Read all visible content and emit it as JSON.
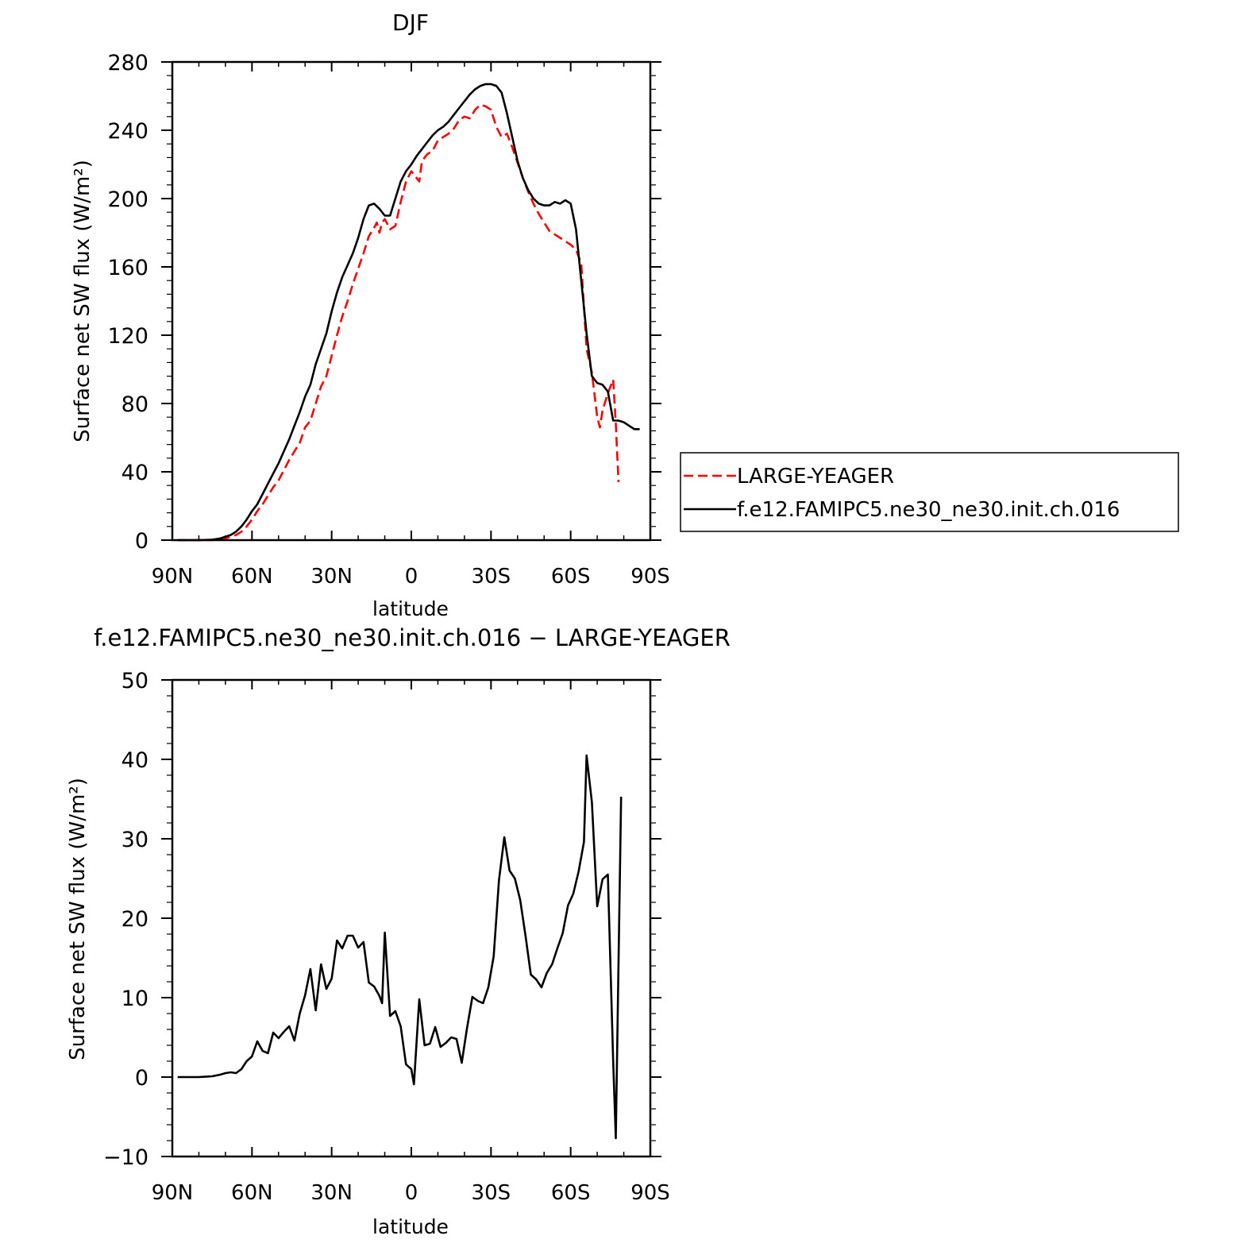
{
  "chart_data": [
    {
      "type": "line",
      "title": "DJF",
      "xlabel": "latitude",
      "ylabel": "Surface net SW flux (W/m²)",
      "xlim": [
        90,
        -90
      ],
      "ylim": [
        0,
        280
      ],
      "x_ticks": [
        90,
        60,
        30,
        0,
        -30,
        -60,
        -90
      ],
      "x_tick_labels": [
        "90N",
        "60N",
        "30N",
        "0",
        "30S",
        "60S",
        "90S"
      ],
      "y_ticks": [
        0,
        40,
        80,
        120,
        160,
        200,
        240,
        280
      ],
      "y_tick_labels": [
        "0",
        "40",
        "80",
        "120",
        "160",
        "200",
        "240",
        "280"
      ],
      "legend_position": "right",
      "series": [
        {
          "name": "LARGE-YEAGER",
          "color": "#ff0000",
          "dash": "dashed",
          "x": [
            88,
            85,
            80,
            75,
            72,
            70,
            68,
            66,
            64,
            62,
            60,
            58,
            56,
            54,
            52,
            50,
            48,
            46,
            44,
            42,
            40,
            38,
            36,
            34,
            32,
            30,
            28,
            26,
            24,
            22,
            20,
            18,
            16,
            14,
            13,
            12,
            11,
            10,
            8,
            6,
            4,
            2,
            0,
            -2,
            -3,
            -4,
            -6,
            -8,
            -10,
            -12,
            -14,
            -16,
            -18,
            -20,
            -22,
            -24,
            -26,
            -28,
            -30,
            -32,
            -34,
            -36,
            -38,
            -40,
            -42,
            -44,
            -46,
            -48,
            -50,
            -52,
            -54,
            -56,
            -58,
            -60,
            -62,
            -64,
            -66,
            -68,
            -70,
            -71,
            -72,
            -74,
            -76,
            -77,
            -78
          ],
          "y": [
            0,
            0,
            0,
            0,
            0.5,
            1,
            2,
            3,
            5,
            8,
            12,
            17,
            21,
            26,
            31,
            35,
            41,
            47,
            52,
            57,
            66,
            70,
            80,
            90,
            96,
            108,
            120,
            131,
            140,
            150,
            159,
            168,
            178,
            183,
            186,
            180,
            186,
            188,
            182,
            184,
            198,
            210,
            216,
            212,
            210,
            222,
            226,
            228,
            234,
            236,
            238,
            241,
            246,
            248,
            247,
            252,
            255,
            254,
            252,
            242,
            236,
            238,
            230,
            221,
            212,
            204,
            197,
            191,
            186,
            181,
            179,
            177,
            175,
            173,
            170,
            162,
            112,
            98,
            72,
            66,
            76,
            86,
            94,
            68,
            34
          ]
        },
        {
          "name": "f.e12.FAMIPC5.ne30_ne30.init.ch.016",
          "color": "#000000",
          "dash": "solid",
          "x": [
            88,
            85,
            80,
            75,
            72,
            70,
            68,
            66,
            64,
            62,
            60,
            58,
            56,
            54,
            52,
            50,
            48,
            46,
            44,
            42,
            40,
            38,
            36,
            34,
            32,
            30,
            28,
            26,
            24,
            22,
            20,
            18,
            16,
            14,
            12,
            10,
            8,
            6,
            4,
            2,
            0,
            -2,
            -4,
            -6,
            -8,
            -10,
            -12,
            -14,
            -16,
            -18,
            -20,
            -22,
            -24,
            -26,
            -28,
            -30,
            -32,
            -34,
            -36,
            -38,
            -40,
            -42,
            -44,
            -46,
            -48,
            -50,
            -52,
            -54,
            -56,
            -58,
            -60,
            -62,
            -64,
            -66,
            -68,
            -70,
            -72,
            -74,
            -76,
            -78,
            -80,
            -82,
            -84,
            -86
          ],
          "y": [
            0,
            0,
            0,
            0.3,
            1,
            2,
            3,
            5,
            8,
            12,
            17,
            21,
            27,
            33,
            39,
            45,
            52,
            59,
            67,
            75,
            84,
            91,
            103,
            112,
            121,
            134,
            145,
            154,
            161,
            168,
            177,
            188,
            196,
            197,
            194,
            190,
            190,
            200,
            210,
            216,
            220,
            225,
            229,
            233,
            237,
            240,
            242,
            245,
            249,
            253,
            257,
            261,
            264,
            266,
            267,
            267,
            266,
            262,
            250,
            236,
            222,
            212,
            205,
            200,
            197,
            196,
            196,
            198,
            197,
            199,
            197,
            182,
            152,
            121,
            96,
            92,
            91,
            87,
            70,
            70,
            69,
            67,
            65,
            65
          ]
        }
      ]
    },
    {
      "type": "line",
      "title": "f.e12.FAMIPC5.ne30_ne30.init.ch.016 - LARGE-YEAGER",
      "xlabel": "latitude",
      "ylabel": "Surface net SW flux (W/m²)",
      "xlim": [
        90,
        -90
      ],
      "ylim": [
        -10,
        50
      ],
      "x_ticks": [
        90,
        60,
        30,
        0,
        -30,
        -60,
        -90
      ],
      "x_tick_labels": [
        "90N",
        "60N",
        "30N",
        "0",
        "30S",
        "60S",
        "90S"
      ],
      "y_ticks": [
        -10,
        0,
        10,
        20,
        30,
        40,
        50
      ],
      "y_tick_labels": [
        "−10",
        "0",
        "10",
        "20",
        "30",
        "40",
        "50"
      ],
      "series": [
        {
          "color": "#000000",
          "dash": "solid",
          "x": [
            88,
            85,
            80,
            75,
            72,
            70,
            68,
            66,
            64,
            62,
            60,
            58,
            56,
            54,
            52,
            50,
            48,
            46,
            44,
            42,
            40,
            38,
            36,
            34,
            32,
            30,
            28,
            26,
            24,
            22,
            20,
            18,
            16,
            14,
            12,
            11,
            10,
            8,
            6,
            4,
            2,
            0,
            -1,
            -3,
            -5,
            -7,
            -9,
            -11,
            -13,
            -15,
            -17,
            -19,
            -21,
            -23,
            -25,
            -27,
            -29,
            -31,
            -33,
            -35,
            -37,
            -39,
            -41,
            -43,
            -45,
            -47,
            -49,
            -51,
            -53,
            -55,
            -57,
            -59,
            -61,
            -63,
            -65,
            -66,
            -68,
            -70,
            -72,
            -74,
            -76,
            -77,
            -79
          ],
          "y": [
            0,
            0,
            0,
            0.1,
            0.3,
            0.5,
            0.6,
            0.5,
            1,
            2,
            2.6,
            4.5,
            3.3,
            3,
            5.6,
            4.9,
            5.7,
            6.4,
            4.6,
            8,
            10.3,
            13.6,
            8.4,
            14.2,
            11.1,
            12.4,
            17.2,
            16.2,
            17.8,
            17.8,
            16.3,
            17,
            11.9,
            11.4,
            10.2,
            9.3,
            18.2,
            7.7,
            8.3,
            6.4,
            1.6,
            1,
            -0.9,
            9.8,
            4,
            4.2,
            6.3,
            3.8,
            4.3,
            5,
            4.8,
            1.8,
            6.2,
            10.1,
            9.6,
            9.3,
            11.3,
            15.2,
            24.8,
            30.2,
            26,
            25,
            22.3,
            17.8,
            12.9,
            12.3,
            11.3,
            13.1,
            14.2,
            16.2,
            18.1,
            21.6,
            23.1,
            25.9,
            29.6,
            40.5,
            34.6,
            21.5,
            24.9,
            25.5,
            2,
            -7.7,
            35.3
          ]
        }
      ]
    }
  ]
}
